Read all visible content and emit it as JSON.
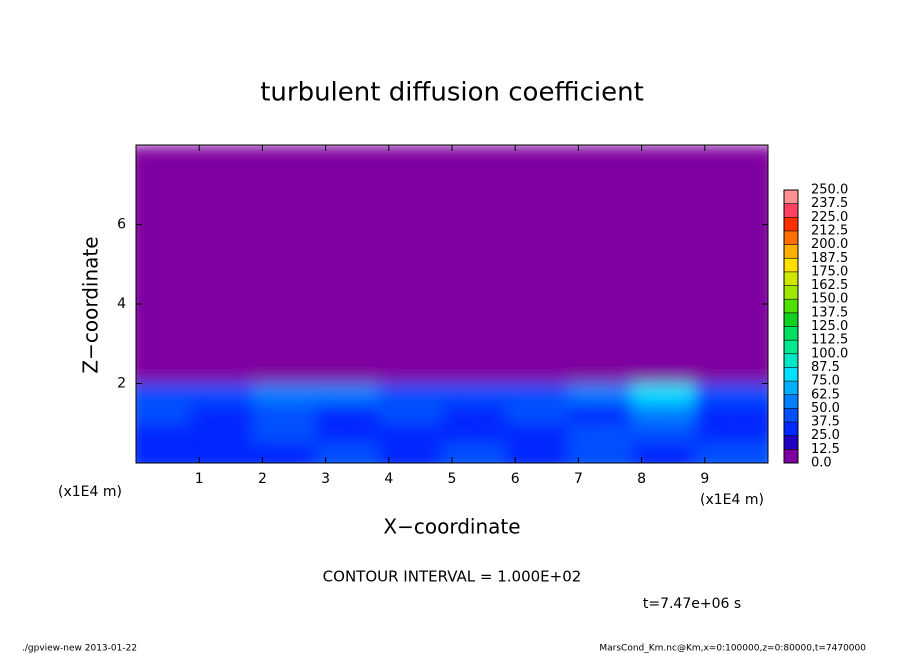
{
  "chart_data": {
    "type": "contour",
    "title": "turbulent diffusion coefficient",
    "x_label": "X−coordinate",
    "y_label": "Z−coordinate",
    "axis_unit_labels": [
      "(x1E4 m)",
      "(x1E4 m)"
    ],
    "xlim": [
      0,
      10
    ],
    "ylim": [
      0,
      8
    ],
    "xticks": [
      1,
      2,
      3,
      4,
      5,
      6,
      7,
      8,
      9
    ],
    "yticks": [
      2,
      4,
      6
    ],
    "x_edges": [
      0,
      1,
      2,
      3,
      4,
      5,
      6,
      7,
      8,
      9,
      10
    ],
    "z_edges": [
      0,
      0.5,
      1,
      1.5,
      2,
      8
    ],
    "values": [
      [
        30,
        35,
        30,
        40,
        35,
        45,
        30,
        40,
        35,
        40
      ],
      [
        30,
        25,
        45,
        25,
        30,
        25,
        30,
        45,
        40,
        25
      ],
      [
        40,
        30,
        45,
        30,
        40,
        30,
        40,
        35,
        60,
        35
      ],
      [
        45,
        45,
        60,
        50,
        45,
        40,
        45,
        50,
        75,
        45
      ],
      [
        0,
        0,
        0,
        0,
        0,
        0,
        0,
        0,
        0,
        0
      ]
    ],
    "levels": [
      {
        "value": 0,
        "label": "0.0"
      },
      {
        "value": 12.5,
        "label": "12.5"
      },
      {
        "value": 25,
        "label": "25.0"
      },
      {
        "value": 37.5,
        "label": "37.5"
      },
      {
        "value": 50,
        "label": "50.0"
      },
      {
        "value": 62.5,
        "label": "62.5"
      },
      {
        "value": 75,
        "label": "75.0"
      },
      {
        "value": 87.5,
        "label": "87.5"
      },
      {
        "value": 100,
        "label": "100.0"
      },
      {
        "value": 112.5,
        "label": "112.5"
      },
      {
        "value": 125,
        "label": "125.0"
      },
      {
        "value": 137.5,
        "label": "137.5"
      },
      {
        "value": 150,
        "label": "150.0"
      },
      {
        "value": 162.5,
        "label": "162.5"
      },
      {
        "value": 175,
        "label": "175.0"
      },
      {
        "value": 187.5,
        "label": "187.5"
      },
      {
        "value": 200,
        "label": "200.0"
      },
      {
        "value": 212.5,
        "label": "212.5"
      },
      {
        "value": 225,
        "label": "225.0"
      },
      {
        "value": 237.5,
        "label": "237.5"
      },
      {
        "value": 250,
        "label": "250.0"
      }
    ],
    "colors": [
      "#7f00a0",
      "#2000c0",
      "#0028ff",
      "#0050ff",
      "#0080ff",
      "#00b0ff",
      "#00e0ff",
      "#00e8c8",
      "#00e890",
      "#00e060",
      "#10d020",
      "#50e000",
      "#a0e800",
      "#d0e800",
      "#ffe000",
      "#ffb000",
      "#ff7000",
      "#ff3000",
      "#ff4060",
      "#ff9090"
    ],
    "contour_interval": "CONTOUR INTERVAL = 1.000E+02",
    "time_label": "t=7.47e+06 s",
    "footer_left": "./gpview-new  2013-01-22",
    "footer_right": "MarsCond_Km.nc@Km,x=0:100000,z=0:80000,t=7470000"
  }
}
